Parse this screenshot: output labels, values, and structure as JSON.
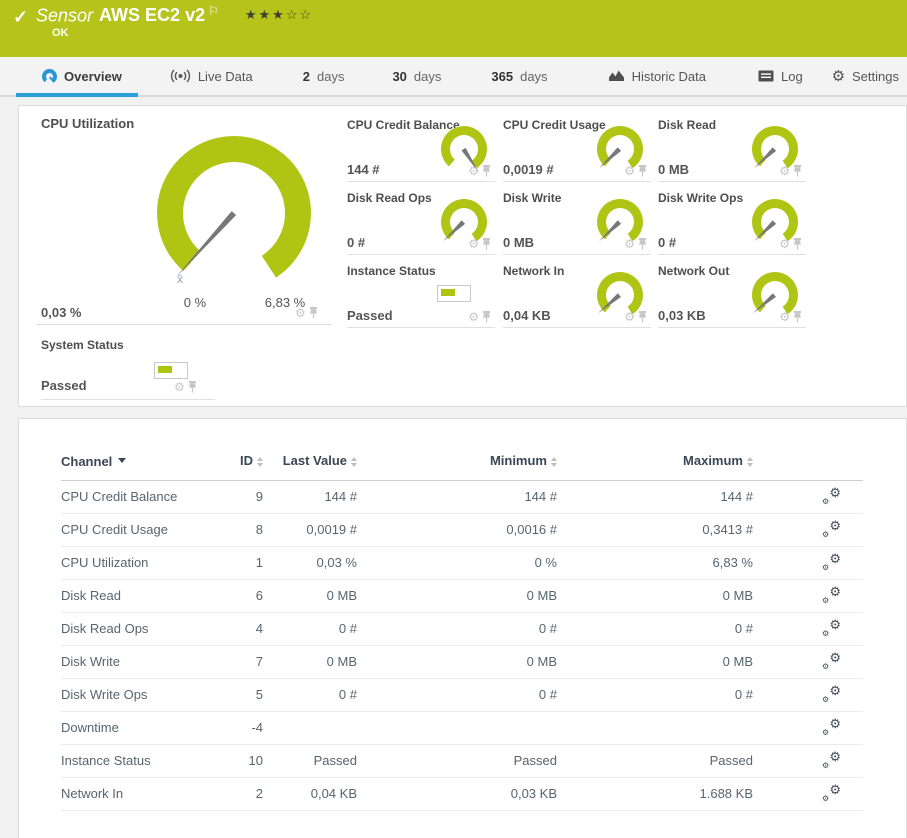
{
  "header": {
    "kind_label": "Sensor",
    "title": "AWS EC2 v2",
    "status": "OK",
    "rating": {
      "value": 3,
      "max": 5
    }
  },
  "tabs": [
    {
      "label": "Overview",
      "icon": "gauge-icon",
      "active": true
    },
    {
      "label": "Live Data",
      "icon": "broadcast-icon"
    },
    {
      "num": "2",
      "label": "days"
    },
    {
      "num": "30",
      "label": "days"
    },
    {
      "num": "365",
      "label": "days"
    },
    {
      "label": "Historic Data",
      "icon": "area-chart-icon"
    },
    {
      "label": "Log",
      "icon": "log-icon"
    },
    {
      "label": "Settings",
      "icon": "gear-icon"
    }
  ],
  "colors": {
    "brand_green": "#b6c31b",
    "gauge_green": "#b0c513",
    "accent_blue": "#2b9fd9"
  },
  "gauges": {
    "primary": {
      "title": "CPU Utilization",
      "value": "0,03 %",
      "min_label": "0 %",
      "max_label": "6,83 %",
      "level": 0.004,
      "mean_marker": "x̄"
    },
    "small": [
      {
        "title": "CPU Credit Balance",
        "value": "144 #",
        "type": "gauge",
        "level": 1
      },
      {
        "title": "CPU Credit Usage",
        "value": "0,0019 #",
        "type": "gauge",
        "level": 0.02
      },
      {
        "title": "Disk Read",
        "value": "0 MB",
        "type": "gauge",
        "level": 0.02
      },
      {
        "title": "Disk Read Ops",
        "value": "0 #",
        "type": "gauge",
        "level": 0.02
      },
      {
        "title": "Disk Write",
        "value": "0 MB",
        "type": "gauge",
        "level": 0.02
      },
      {
        "title": "Disk Write Ops",
        "value": "0 #",
        "type": "gauge",
        "level": 0.02
      },
      {
        "title": "Instance Status",
        "value": "Passed",
        "type": "indicator"
      },
      {
        "title": "Network In",
        "value": "0,04 KB",
        "type": "gauge",
        "level": 0.03
      },
      {
        "title": "Network Out",
        "value": "0,03 KB",
        "type": "gauge",
        "level": 0.03
      }
    ],
    "secondary": {
      "title": "System Status",
      "value": "Passed",
      "type": "indicator"
    }
  },
  "table": {
    "headers": {
      "channel": "Channel",
      "id": "ID",
      "last": "Last Value",
      "min": "Minimum",
      "max": "Maximum"
    },
    "rows": [
      {
        "channel": "CPU Credit Balance",
        "id": "9",
        "last": "144 #",
        "min": "144 #",
        "max": "144 #"
      },
      {
        "channel": "CPU Credit Usage",
        "id": "8",
        "last": "0,0019 #",
        "min": "0,0016 #",
        "max": "0,3413 #"
      },
      {
        "channel": "CPU Utilization",
        "id": "1",
        "last": "0,03 %",
        "min": "0 %",
        "max": "6,83 %"
      },
      {
        "channel": "Disk Read",
        "id": "6",
        "last": "0 MB",
        "min": "0 MB",
        "max": "0 MB"
      },
      {
        "channel": "Disk Read Ops",
        "id": "4",
        "last": "0 #",
        "min": "0 #",
        "max": "0 #"
      },
      {
        "channel": "Disk Write",
        "id": "7",
        "last": "0 MB",
        "min": "0 MB",
        "max": "0 MB"
      },
      {
        "channel": "Disk Write Ops",
        "id": "5",
        "last": "0 #",
        "min": "0 #",
        "max": "0 #"
      },
      {
        "channel": "Downtime",
        "id": "-4",
        "last": "",
        "min": "",
        "max": ""
      },
      {
        "channel": "Instance Status",
        "id": "10",
        "last": "Passed",
        "min": "Passed",
        "max": "Passed"
      },
      {
        "channel": "Network In",
        "id": "2",
        "last": "0,04 KB",
        "min": "0,03 KB",
        "max": "1.688 KB"
      }
    ]
  }
}
